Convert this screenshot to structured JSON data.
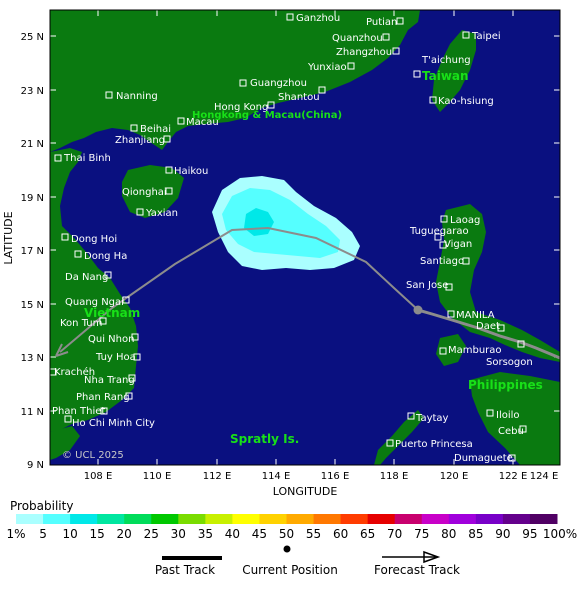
{
  "map": {
    "latitude_label": "LATITUDE",
    "longitude_label": "LONGITUDE",
    "copyright": "© UCL 2025",
    "lat_ticks": [
      "25 N",
      "23 N",
      "21 N",
      "19 N",
      "17 N",
      "15 N",
      "13 N",
      "11 N",
      "9 N"
    ],
    "lon_ticks": [
      "108 E",
      "110 E",
      "112 E",
      "114 E",
      "116 E",
      "118 E",
      "120 E",
      "122 E",
      "124 E"
    ],
    "regions": [
      "Taiwan",
      "Hongkong & Macau(China)",
      "Vietnam",
      "Philippines",
      "Spratly Is."
    ],
    "cities": [
      "Ganzhou",
      "Putian",
      "Quanzhou",
      "Taipei",
      "Zhangzhou",
      "Yunxiao",
      "T'aichung",
      "Guangzhou",
      "Shantou",
      "Nanning",
      "Hong Kong",
      "Kao-hsiung",
      "Beihai",
      "Macau",
      "Zhanjiang",
      "Thai Binh",
      "Haikou",
      "Qionghai",
      "Yaxian",
      "Laoag",
      "Dong Hoi",
      "Tuguegarao",
      "Vigan",
      "Dong Ha",
      "Santiago",
      "Da Nang",
      "San Jose",
      "Quang Ngai",
      "MANILA",
      "Kon Tum",
      "Daet",
      "Qui Nhon",
      "Mamburao",
      "Krachéh",
      "Tuy Hoa",
      "Sorsogon",
      "Nha Trang",
      "Phan Rang",
      "Phan Thiet",
      "Iloilo",
      "Ho Chi Minh City",
      "Taytay",
      "Cebu",
      "Puerto Princesa",
      "Dumaguete"
    ]
  },
  "legend": {
    "title": "Probability",
    "labels": [
      "1%",
      "5",
      "10",
      "15",
      "20",
      "25",
      "30",
      "35",
      "40",
      "45",
      "50",
      "55",
      "60",
      "65",
      "70",
      "75",
      "80",
      "85",
      "90",
      "95",
      "100%"
    ],
    "colors": [
      "#aaffff",
      "#55ffff",
      "#00e8e8",
      "#00e6a0",
      "#00dc5a",
      "#00c800",
      "#7adc00",
      "#c8f000",
      "#ffff00",
      "#ffd200",
      "#ffaa00",
      "#ff7800",
      "#ff3c00",
      "#e60000",
      "#c8006e",
      "#c800c8",
      "#a000dc",
      "#7800c8",
      "#64008c",
      "#500064"
    ]
  },
  "keys": {
    "past_track": "Past Track",
    "current_position": "Current Position",
    "forecast_track": "Forecast Track"
  },
  "colors": {
    "ocean": "#0a1080",
    "land": "#0a7a10",
    "region_text": "#18e018",
    "track": "#8c8c8c"
  }
}
